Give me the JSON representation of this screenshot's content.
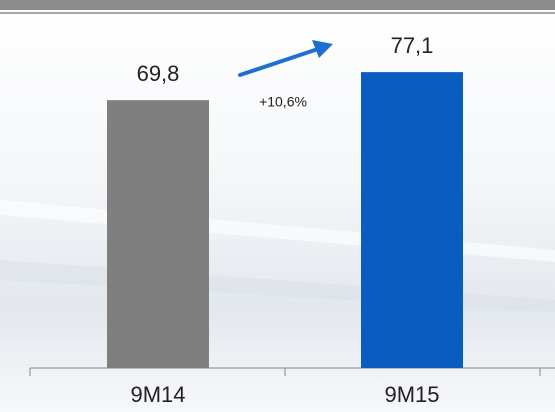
{
  "chart_data": {
    "type": "bar",
    "categories": [
      "9M14",
      "9M15"
    ],
    "values": [
      69.8,
      77.1
    ],
    "value_labels": [
      "69,8",
      "77,1"
    ],
    "colors": [
      "#7f7f7f",
      "#0a5cc0"
    ],
    "ylim": [
      0,
      80
    ],
    "annotation": "+10,6%"
  }
}
